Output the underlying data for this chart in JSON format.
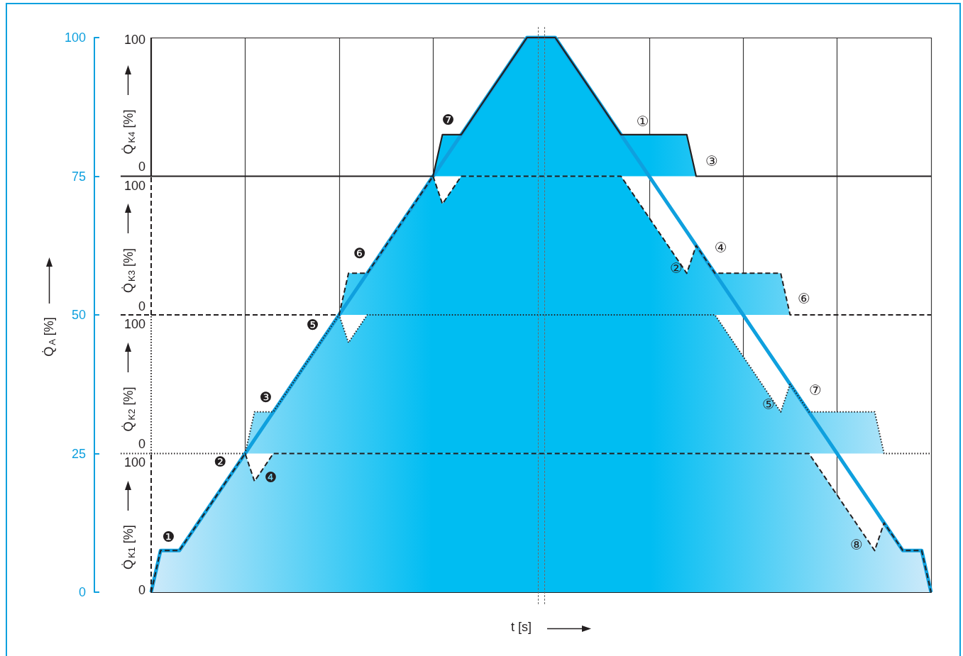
{
  "chart_data": {
    "type": "area",
    "categories": [
      null,
      null,
      null,
      null,
      null,
      null,
      null,
      null,
      null,
      null,
      null,
      null,
      null,
      null,
      null,
      null,
      null,
      null,
      null,
      null,
      null,
      null,
      null,
      null,
      null,
      null,
      null,
      null,
      null,
      null,
      null,
      null,
      null,
      null,
      null,
      null,
      null,
      null,
      null,
      null,
      null,
      null,
      null,
      null,
      null,
      null,
      null,
      null,
      null,
      null,
      null,
      null,
      null,
      null,
      null,
      null,
      null,
      null,
      null,
      null,
      null,
      null,
      null,
      null,
      null,
      null,
      null,
      null,
      null,
      null,
      null,
      null,
      null,
      null,
      null,
      null,
      null,
      null,
      null,
      null,
      null,
      null,
      null,
      null
    ],
    "xlabel": "t [s]",
    "ylabel": "Q̇$_{A}$ [%]",
    "ylim": [
      0,
      100
    ],
    "yticks": [
      0,
      25,
      50,
      75,
      100
    ],
    "grid": "x",
    "tick_labels": "y",
    "series": [
      {
        "type": "line",
        "color": "#0fa0de",
        "line_style": "solid",
        "values": [
          0,
          7.5,
          7.5,
          7.5,
          10,
          12.5,
          15,
          17.5,
          20,
          22.5,
          25,
          27.5,
          30,
          32.5,
          35,
          37.5,
          40,
          42.5,
          45,
          47.5,
          50,
          52.5,
          55,
          57.5,
          60,
          62.5,
          65,
          67.5,
          70,
          72.5,
          75,
          77.5,
          80,
          82.5,
          85,
          87.5,
          90,
          92.5,
          95,
          97.5,
          100,
          100,
          100,
          100,
          97.5,
          95,
          92.5,
          90,
          87.5,
          85,
          82.5,
          80,
          77.5,
          75,
          72.5,
          70,
          67.5,
          65,
          62.5,
          60,
          57.5,
          55,
          52.5,
          50,
          47.5,
          45,
          42.5,
          40,
          37.5,
          35,
          32.5,
          30,
          27.5,
          25,
          22.5,
          20,
          17.5,
          15,
          12.5,
          10,
          7.5,
          7.5,
          7.5,
          0
        ]
      },
      {
        "color": "#231f20",
        "line_style": "dashed",
        "values": [
          0,
          7.5,
          7.5,
          7.5,
          10,
          12.5,
          15,
          17.5,
          20,
          22.5,
          25,
          20,
          22.5,
          25,
          25,
          25,
          25,
          25,
          25,
          25,
          25,
          25,
          25,
          25,
          25,
          25,
          25,
          25,
          25,
          25,
          25,
          25,
          25,
          25,
          25,
          25,
          25,
          25,
          25,
          25,
          25,
          25,
          25,
          25,
          25,
          25,
          25,
          25,
          25,
          25,
          25,
          25,
          25,
          25,
          25,
          25,
          25,
          25,
          25,
          25,
          25,
          25,
          25,
          25,
          25,
          25,
          25,
          25,
          25,
          25,
          25,
          22.5,
          20,
          17.5,
          15,
          12.5,
          10,
          7.5,
          12.5,
          10,
          7.5,
          7.5,
          7.5,
          0
        ]
      },
      {
        "color": "#231f20",
        "line_style": "dotted",
        "values": [
          25,
          25,
          25,
          25,
          25,
          25,
          25,
          25,
          25,
          25,
          25,
          32.5,
          32.5,
          32.5,
          35,
          37.5,
          40,
          42.5,
          45,
          47.5,
          50,
          45,
          47.5,
          50,
          50,
          50,
          50,
          50,
          50,
          50,
          50,
          50,
          50,
          50,
          50,
          50,
          50,
          50,
          50,
          50,
          50,
          50,
          50,
          50,
          50,
          50,
          50,
          50,
          50,
          50,
          50,
          50,
          50,
          50,
          50,
          50,
          50,
          50,
          50,
          50,
          50,
          47.5,
          45,
          42.5,
          40,
          37.5,
          35,
          32.5,
          37.5,
          35,
          32.5,
          32.5,
          32.5,
          32.5,
          32.5,
          32.5,
          32.5,
          32.5,
          25,
          25,
          25,
          25,
          25,
          25
        ]
      },
      {
        "color": "#231f20",
        "line_style": "dashed",
        "values": [
          50,
          50,
          50,
          50,
          50,
          50,
          50,
          50,
          50,
          50,
          50,
          50,
          50,
          50,
          50,
          50,
          50,
          50,
          50,
          50,
          50,
          57.5,
          57.5,
          57.5,
          60,
          62.5,
          65,
          67.5,
          70,
          72.5,
          75,
          70,
          72.5,
          75,
          75,
          75,
          75,
          75,
          75,
          75,
          75,
          75,
          75,
          75,
          75,
          75,
          75,
          75,
          75,
          75,
          75,
          72.5,
          70,
          67.5,
          65,
          62.5,
          60,
          57.5,
          62.5,
          60,
          57.5,
          57.5,
          57.5,
          57.5,
          57.5,
          57.5,
          57.5,
          57.5,
          50,
          50,
          50,
          50,
          50,
          50,
          50,
          50,
          50,
          50,
          50,
          50,
          50,
          50,
          50,
          50
        ]
      },
      {
        "color": "#231f20",
        "line_style": "solid",
        "values": [
          75,
          75,
          75,
          75,
          75,
          75,
          75,
          75,
          75,
          75,
          75,
          75,
          75,
          75,
          75,
          75,
          75,
          75,
          75,
          75,
          75,
          75,
          75,
          75,
          75,
          75,
          75,
          75,
          75,
          75,
          75,
          82.5,
          82.5,
          82.5,
          85,
          87.5,
          90,
          92.5,
          95,
          97.5,
          100,
          100,
          100,
          100,
          97.5,
          95,
          92.5,
          90,
          87.5,
          85,
          82.5,
          82.5,
          82.5,
          82.5,
          82.5,
          82.5,
          82.5,
          82.5,
          75,
          75,
          75,
          75,
          75,
          75,
          75,
          75,
          75,
          75,
          75,
          75,
          75,
          75,
          75,
          75,
          75,
          75,
          75,
          75,
          75,
          75,
          75,
          75,
          75,
          75
        ]
      }
    ],
    "annotations": [
      "100",
      "Q̇$_{K4}$ [%]",
      "0",
      "100",
      "Q̇$_{K3}$ [%]",
      "0",
      "100",
      "Q̇$_{K2}$ [%]",
      "0",
      "100",
      "Q̇$_{K1}$ [%]",
      "0",
      "❶",
      "❷",
      "❸",
      "❹",
      "❺",
      "❻",
      "❼",
      "①",
      "②",
      "③",
      "④",
      "⑤",
      "⑥",
      "⑦",
      "⑧"
    ]
  }
}
